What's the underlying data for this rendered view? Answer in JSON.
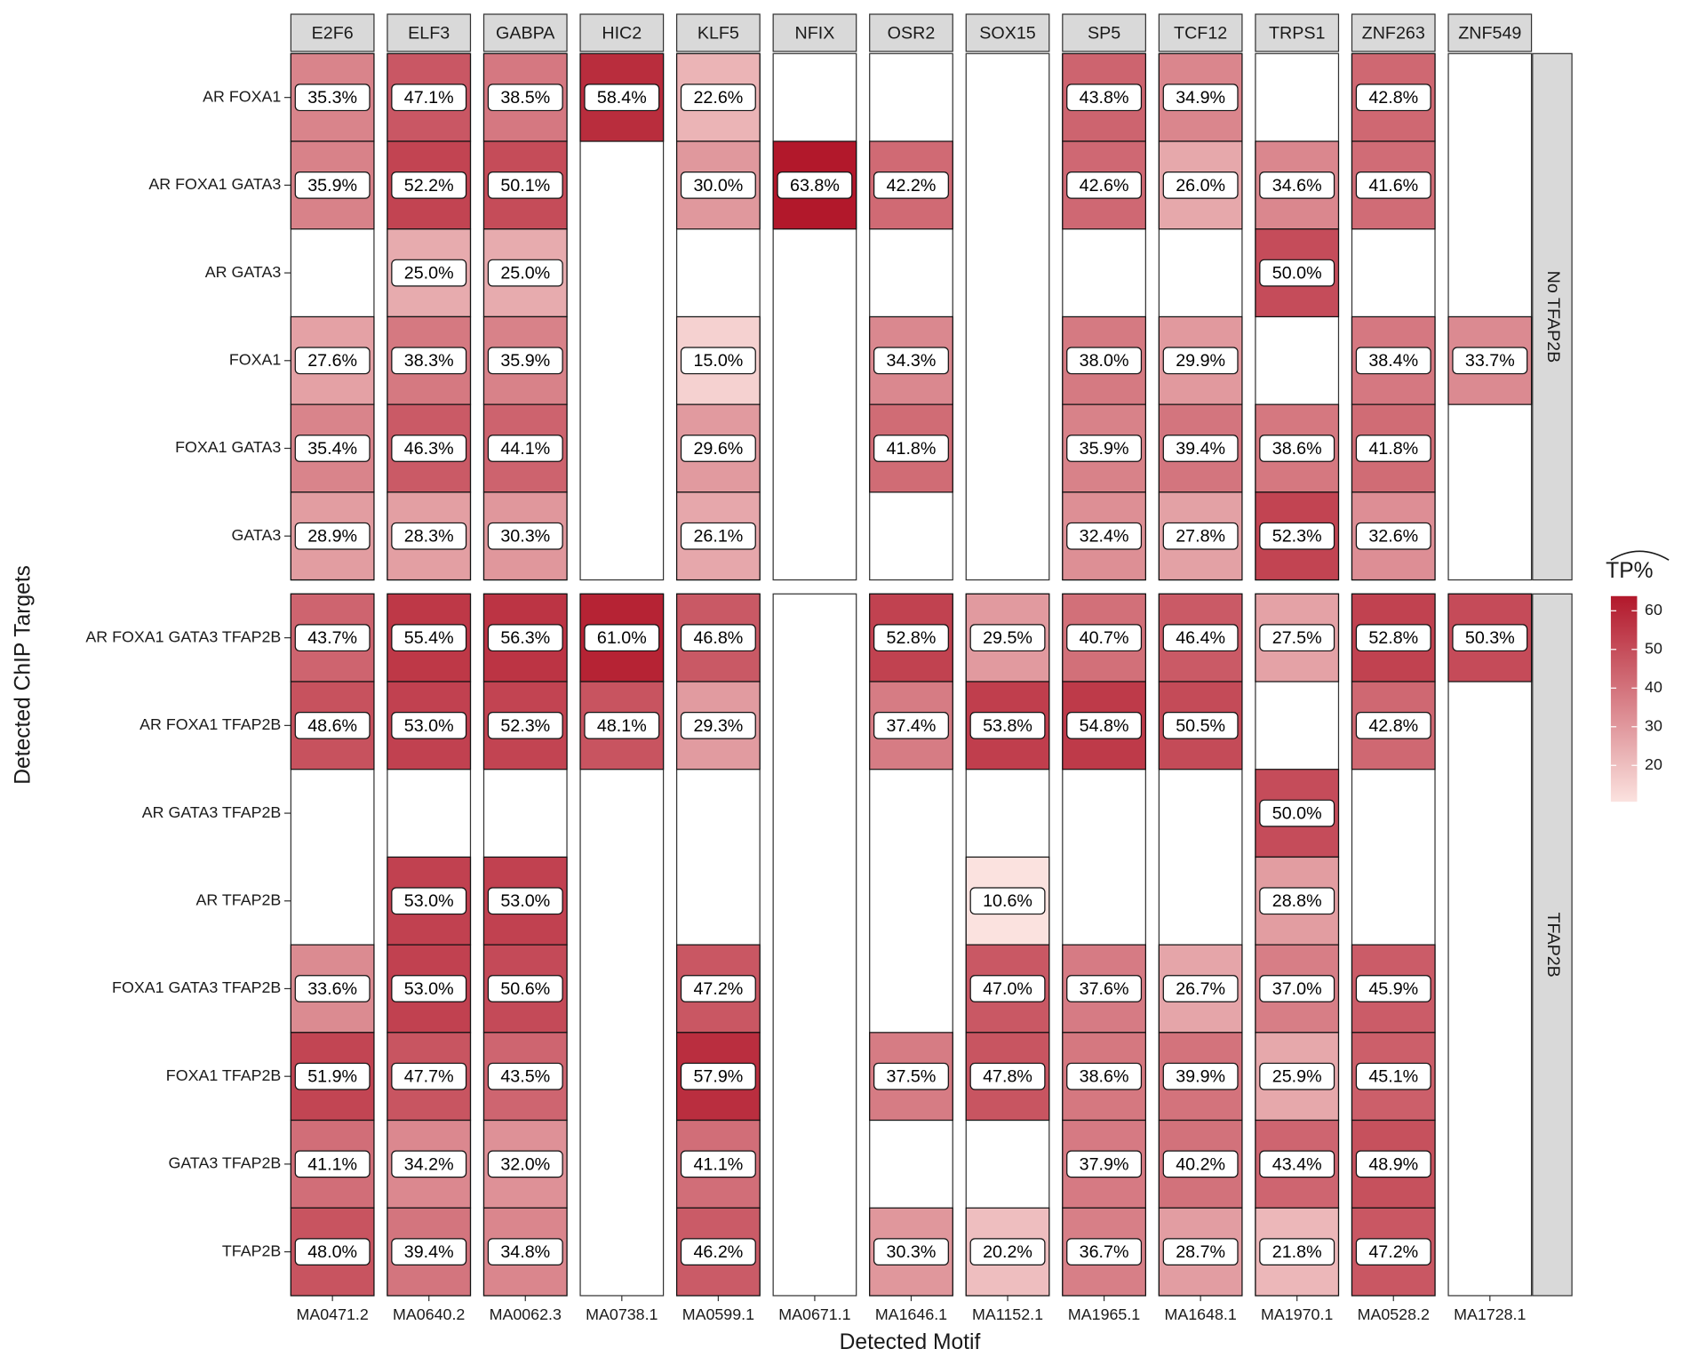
{
  "chart_data": {
    "type": "heatmap",
    "xlabel": "Detected Motif",
    "ylabel": "Detected ChIP Targets",
    "columns": [
      {
        "name": "E2F6",
        "id": "MA0471.2"
      },
      {
        "name": "ELF3",
        "id": "MA0640.2"
      },
      {
        "name": "GABPA",
        "id": "MA0062.3"
      },
      {
        "name": "HIC2",
        "id": "MA0738.1"
      },
      {
        "name": "KLF5",
        "id": "MA0599.1"
      },
      {
        "name": "NFIX",
        "id": "MA0671.1"
      },
      {
        "name": "OSR2",
        "id": "MA1646.1"
      },
      {
        "name": "SOX15",
        "id": "MA1152.1"
      },
      {
        "name": "SP5",
        "id": "MA1965.1"
      },
      {
        "name": "TCF12",
        "id": "MA1648.1"
      },
      {
        "name": "TRPS1",
        "id": "MA1970.1"
      },
      {
        "name": "ZNF263",
        "id": "MA0528.2"
      },
      {
        "name": "ZNF549",
        "id": "MA1728.1"
      }
    ],
    "panels": [
      {
        "label": "No TFAP2B",
        "rows": [
          {
            "name": "AR FOXA1",
            "values": [
              35.3,
              47.1,
              38.5,
              58.4,
              22.6,
              null,
              null,
              null,
              43.8,
              34.9,
              null,
              42.8,
              null
            ],
            "value_labels": [
              "35.3%",
              "47.1%",
              "38.5%",
              "58.4%",
              "22.6%",
              null,
              null,
              null,
              "43.8%",
              "34.9%",
              null,
              "42.8%",
              null
            ]
          },
          {
            "name": "AR FOXA1 GATA3",
            "values": [
              35.9,
              52.2,
              50.1,
              null,
              30.0,
              63.8,
              42.2,
              null,
              42.6,
              26.0,
              34.6,
              41.6,
              null
            ],
            "value_labels": [
              "35.9%",
              "52.2%",
              "50.1%",
              null,
              "30.0%",
              "63.8%",
              "42.2%",
              null,
              "42.6%",
              "26.0%",
              "34.6%",
              "41.6%",
              null
            ]
          },
          {
            "name": "AR GATA3",
            "values": [
              null,
              25.0,
              25.0,
              null,
              null,
              null,
              null,
              null,
              null,
              null,
              50.0,
              null,
              null
            ],
            "value_labels": [
              null,
              "25.0%",
              "25.0%",
              null,
              null,
              null,
              null,
              null,
              null,
              null,
              "50.0%",
              null,
              null
            ]
          },
          {
            "name": "FOXA1",
            "values": [
              27.6,
              38.3,
              35.9,
              null,
              15.0,
              null,
              34.3,
              null,
              38.0,
              29.9,
              null,
              38.4,
              33.7
            ],
            "value_labels": [
              "27.6%",
              "38.3%",
              "35.9%",
              null,
              "15.0%",
              null,
              "34.3%",
              null,
              "38.0%",
              "29.9%",
              null,
              "38.4%",
              "33.7%"
            ]
          },
          {
            "name": "FOXA1 GATA3",
            "values": [
              35.4,
              46.3,
              44.1,
              null,
              29.6,
              null,
              41.8,
              null,
              35.9,
              39.4,
              38.6,
              41.8,
              null
            ],
            "value_labels": [
              "35.4%",
              "46.3%",
              "44.1%",
              null,
              "29.6%",
              null,
              "41.8%",
              null,
              "35.9%",
              "39.4%",
              "38.6%",
              "41.8%",
              null
            ]
          },
          {
            "name": "GATA3",
            "values": [
              28.9,
              28.3,
              30.3,
              null,
              26.1,
              null,
              null,
              null,
              32.4,
              27.8,
              52.3,
              32.6,
              null
            ],
            "value_labels": [
              "28.9%",
              "28.3%",
              "30.3%",
              null,
              "26.1%",
              null,
              null,
              null,
              "32.4%",
              "27.8%",
              "52.3%",
              "32.6%",
              null
            ]
          }
        ]
      },
      {
        "label": "TFAP2B",
        "rows": [
          {
            "name": "AR FOXA1 GATA3 TFAP2B",
            "values": [
              43.7,
              55.4,
              56.3,
              61.0,
              46.8,
              null,
              52.8,
              29.5,
              40.7,
              46.4,
              27.5,
              52.8,
              50.3
            ],
            "value_labels": [
              "43.7%",
              "55.4%",
              "56.3%",
              "61.0%",
              "46.8%",
              null,
              "52.8%",
              "29.5%",
              "40.7%",
              "46.4%",
              "27.5%",
              "52.8%",
              "50.3%"
            ]
          },
          {
            "name": "AR FOXA1 TFAP2B",
            "values": [
              48.6,
              53.0,
              52.3,
              48.1,
              29.3,
              null,
              37.4,
              53.8,
              54.8,
              50.5,
              null,
              42.8,
              null
            ],
            "value_labels": [
              "48.6%",
              "53.0%",
              "52.3%",
              "48.1%",
              "29.3%",
              null,
              "37.4%",
              "53.8%",
              "54.8%",
              "50.5%",
              null,
              "42.8%",
              null
            ]
          },
          {
            "name": "AR GATA3 TFAP2B",
            "values": [
              null,
              null,
              null,
              null,
              null,
              null,
              null,
              null,
              null,
              null,
              50.0,
              null,
              null
            ],
            "value_labels": [
              null,
              null,
              null,
              null,
              null,
              null,
              null,
              null,
              null,
              null,
              "50.0%",
              null,
              null
            ]
          },
          {
            "name": "AR TFAP2B",
            "values": [
              null,
              53.0,
              53.0,
              null,
              null,
              null,
              null,
              10.6,
              null,
              null,
              28.8,
              null,
              null
            ],
            "value_labels": [
              null,
              "53.0%",
              "53.0%",
              null,
              null,
              null,
              null,
              "10.6%",
              null,
              null,
              "28.8%",
              null,
              null
            ]
          },
          {
            "name": "FOXA1 GATA3 TFAP2B",
            "values": [
              33.6,
              53.0,
              50.6,
              null,
              47.2,
              null,
              null,
              47.0,
              37.6,
              26.7,
              37.0,
              45.9,
              null
            ],
            "value_labels": [
              "33.6%",
              "53.0%",
              "50.6%",
              null,
              "47.2%",
              null,
              null,
              "47.0%",
              "37.6%",
              "26.7%",
              "37.0%",
              "45.9%",
              null
            ]
          },
          {
            "name": "FOXA1 TFAP2B",
            "values": [
              51.9,
              47.7,
              43.5,
              null,
              57.9,
              null,
              37.5,
              47.8,
              38.6,
              39.9,
              25.9,
              45.1,
              null
            ],
            "value_labels": [
              "51.9%",
              "47.7%",
              "43.5%",
              null,
              "57.9%",
              null,
              "37.5%",
              "47.8%",
              "38.6%",
              "39.9%",
              "25.9%",
              "45.1%",
              null
            ]
          },
          {
            "name": "GATA3 TFAP2B",
            "values": [
              41.1,
              34.2,
              32.0,
              null,
              41.1,
              null,
              null,
              null,
              37.9,
              40.2,
              43.4,
              48.9,
              null
            ],
            "value_labels": [
              "41.1%",
              "34.2%",
              "32.0%",
              null,
              "41.1%",
              null,
              null,
              null,
              "37.9%",
              "40.2%",
              "43.4%",
              "48.9%",
              null
            ]
          },
          {
            "name": "TFAP2B",
            "values": [
              48.0,
              39.4,
              34.8,
              null,
              46.2,
              null,
              30.3,
              20.2,
              36.7,
              28.7,
              21.8,
              47.2,
              null
            ],
            "value_labels": [
              "48.0%",
              "39.4%",
              "34.8%",
              null,
              "46.2%",
              null,
              "30.3%",
              "20.2%",
              "36.7%",
              "28.7%",
              "21.8%",
              "47.2%",
              null
            ]
          }
        ]
      }
    ],
    "colorbar": {
      "title": "TP%",
      "limits": [
        10.6,
        63.8
      ],
      "ticks": [
        20,
        30,
        40,
        50,
        60
      ],
      "low": "#fbe2df",
      "high": "#b2182b"
    }
  }
}
